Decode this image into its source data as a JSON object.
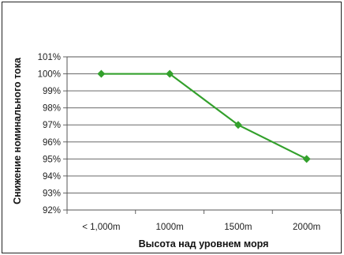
{
  "chart_data": {
    "type": "line",
    "categories": [
      "< 1,000m",
      "1000m",
      "1500m",
      "2000m"
    ],
    "series": [
      {
        "values": [
          100,
          100,
          97,
          95
        ],
        "color": "#33a02c"
      }
    ],
    "xlabel": "Высота над уровнем моря",
    "ylabel": "Снижение номинального тока",
    "ylim": [
      92,
      101
    ],
    "yticks": [
      "92%",
      "93%",
      "94%",
      "95%",
      "96%",
      "97%",
      "98%",
      "99%",
      "100%",
      "101%"
    ],
    "grid": true,
    "legend": "none",
    "marker": "diamond"
  }
}
